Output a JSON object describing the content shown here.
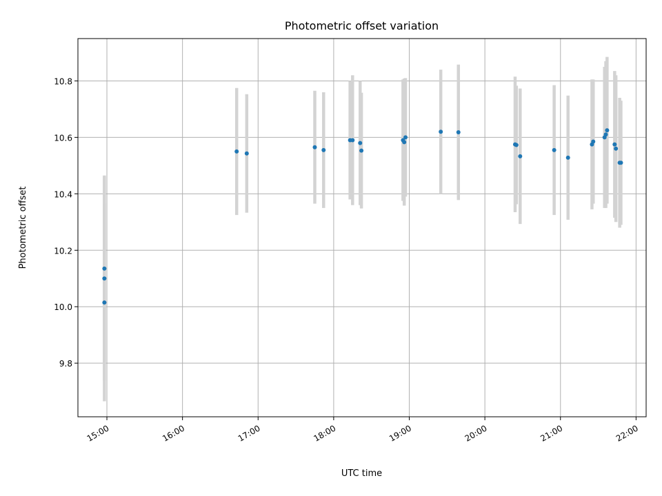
{
  "chart_data": {
    "type": "scatter",
    "title": "Photometric offset variation",
    "xlabel": "UTC time",
    "ylabel": "Photometric offset",
    "x_axis_type": "time",
    "xlim": [
      "14:37",
      "22:08"
    ],
    "ylim": [
      9.61,
      10.95
    ],
    "x_ticks": [
      "15:00",
      "16:00",
      "17:00",
      "18:00",
      "19:00",
      "20:00",
      "21:00",
      "22:00"
    ],
    "y_ticks": [
      9.8,
      10.0,
      10.2,
      10.4,
      10.6,
      10.8
    ],
    "grid": true,
    "marker_color": "#1f77b4",
    "errorbar_color": "#d3d3d3",
    "points": [
      {
        "t": "14:58",
        "y": 10.1,
        "err": 0.36
      },
      {
        "t": "14:58",
        "y": 10.135,
        "err": 0.33
      },
      {
        "t": "14:58",
        "y": 10.015,
        "err": 0.35
      },
      {
        "t": "16:43",
        "y": 10.55,
        "err": 0.225
      },
      {
        "t": "16:51",
        "y": 10.543,
        "err": 0.21
      },
      {
        "t": "17:45",
        "y": 10.565,
        "err": 0.2
      },
      {
        "t": "17:52",
        "y": 10.555,
        "err": 0.205
      },
      {
        "t": "18:13",
        "y": 10.59,
        "err": 0.21
      },
      {
        "t": "18:15",
        "y": 10.59,
        "err": 0.23
      },
      {
        "t": "18:21",
        "y": 10.58,
        "err": 0.22
      },
      {
        "t": "18:22",
        "y": 10.553,
        "err": 0.205
      },
      {
        "t": "18:55",
        "y": 10.59,
        "err": 0.215
      },
      {
        "t": "18:56",
        "y": 10.583,
        "err": 0.225
      },
      {
        "t": "18:57",
        "y": 10.6,
        "err": 0.21
      },
      {
        "t": "19:25",
        "y": 10.62,
        "err": 0.22
      },
      {
        "t": "19:39",
        "y": 10.618,
        "err": 0.24
      },
      {
        "t": "20:24",
        "y": 10.575,
        "err": 0.24
      },
      {
        "t": "20:25",
        "y": 10.573,
        "err": 0.21
      },
      {
        "t": "20:28",
        "y": 10.533,
        "err": 0.24
      },
      {
        "t": "20:55",
        "y": 10.555,
        "err": 0.23
      },
      {
        "t": "21:06",
        "y": 10.528,
        "err": 0.22
      },
      {
        "t": "21:25",
        "y": 10.575,
        "err": 0.23
      },
      {
        "t": "21:26",
        "y": 10.585,
        "err": 0.22
      },
      {
        "t": "21:35",
        "y": 10.6,
        "err": 0.25
      },
      {
        "t": "21:36",
        "y": 10.61,
        "err": 0.26
      },
      {
        "t": "21:37",
        "y": 10.625,
        "err": 0.26
      },
      {
        "t": "21:43",
        "y": 10.575,
        "err": 0.26
      },
      {
        "t": "21:44",
        "y": 10.56,
        "err": 0.26
      },
      {
        "t": "21:47",
        "y": 10.51,
        "err": 0.23
      },
      {
        "t": "21:48",
        "y": 10.51,
        "err": 0.22
      }
    ]
  }
}
